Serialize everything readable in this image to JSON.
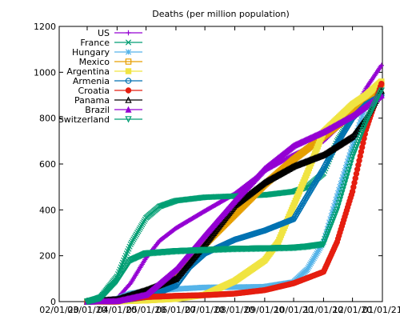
{
  "chart_data": {
    "type": "line",
    "title": "Deaths (per million population)",
    "xlabel": "",
    "ylabel": "",
    "grid": false,
    "legend_position": "top-left",
    "ylim": [
      0,
      1200
    ],
    "yticks": [
      0,
      200,
      400,
      600,
      800,
      1000,
      1200
    ],
    "xticks": [
      "02/01/20",
      "03/01/20",
      "04/01/20",
      "05/01/20",
      "06/01/20",
      "07/01/20",
      "08/01/20",
      "09/01/20",
      "10/01/20",
      "11/01/20",
      "12/01/20",
      "01/01/21"
    ],
    "x_tick_positions": [
      "2020-02-01",
      "2020-03-01",
      "2020-04-01",
      "2020-05-01",
      "2020-06-01",
      "2020-07-01",
      "2020-08-01",
      "2020-09-01",
      "2020-10-01",
      "2020-11-01",
      "2020-12-01",
      "2021-01-01"
    ],
    "xlim": [
      "2020-02-01",
      "2021-01-01"
    ],
    "series": [
      {
        "name": "US",
        "color": "#9400d3",
        "marker": "plus",
        "x": [
          "2020-03-01",
          "2020-04-01",
          "2020-04-15",
          "2020-05-01",
          "2020-05-15",
          "2020-06-01",
          "2020-07-01",
          "2020-08-01",
          "2020-09-01",
          "2020-10-01",
          "2020-11-01",
          "2020-12-01",
          "2020-12-15",
          "2020-12-31"
        ],
        "y": [
          0,
          13,
          80,
          190,
          265,
          320,
          395,
          470,
          570,
          640,
          700,
          820,
          930,
          1030
        ]
      },
      {
        "name": "France",
        "color": "#009e73",
        "marker": "x",
        "x": [
          "2020-03-01",
          "2020-03-15",
          "2020-04-01",
          "2020-04-15",
          "2020-05-01",
          "2020-05-15",
          "2020-06-01",
          "2020-07-01",
          "2020-08-01",
          "2020-09-01",
          "2020-10-01",
          "2020-10-15",
          "2020-11-01",
          "2020-11-15",
          "2020-12-01",
          "2020-12-15",
          "2020-12-31"
        ],
        "y": [
          0,
          20,
          110,
          250,
          365,
          415,
          440,
          455,
          460,
          465,
          480,
          500,
          560,
          700,
          810,
          880,
          950
        ]
      },
      {
        "name": "Hungary",
        "color": "#56b4e9",
        "marker": "star",
        "x": [
          "2020-03-01",
          "2020-04-01",
          "2020-04-15",
          "2020-05-01",
          "2020-06-01",
          "2020-07-01",
          "2020-08-01",
          "2020-09-01",
          "2020-10-01",
          "2020-10-15",
          "2020-11-01",
          "2020-11-15",
          "2020-12-01",
          "2020-12-15",
          "2020-12-31"
        ],
        "y": [
          0,
          10,
          35,
          45,
          55,
          62,
          63,
          65,
          85,
          140,
          260,
          460,
          680,
          860,
          950
        ]
      },
      {
        "name": "Mexico",
        "color": "#e69f00",
        "marker": "square",
        "x": [
          "2020-03-01",
          "2020-04-01",
          "2020-04-15",
          "2020-05-01",
          "2020-05-15",
          "2020-06-01",
          "2020-07-01",
          "2020-08-01",
          "2020-09-01",
          "2020-10-01",
          "2020-11-01",
          "2020-12-01",
          "2020-12-15",
          "2020-12-31"
        ],
        "y": [
          0,
          0,
          8,
          20,
          60,
          120,
          250,
          380,
          510,
          620,
          720,
          820,
          880,
          950
        ]
      },
      {
        "name": "Argentina",
        "color": "#f0e442",
        "marker": "filled-square",
        "x": [
          "2020-03-01",
          "2020-04-01",
          "2020-05-01",
          "2020-06-01",
          "2020-07-01",
          "2020-08-01",
          "2020-09-01",
          "2020-09-15",
          "2020-10-01",
          "2020-10-15",
          "2020-11-01",
          "2020-12-01",
          "2020-12-15",
          "2020-12-31"
        ],
        "y": [
          0,
          1,
          5,
          12,
          30,
          90,
          180,
          260,
          420,
          560,
          740,
          860,
          900,
          960
        ]
      },
      {
        "name": "Armenia",
        "color": "#0072b2",
        "marker": "circle",
        "x": [
          "2020-03-01",
          "2020-04-01",
          "2020-05-01",
          "2020-05-15",
          "2020-06-01",
          "2020-06-15",
          "2020-07-01",
          "2020-08-01",
          "2020-09-01",
          "2020-10-01",
          "2020-10-15",
          "2020-11-01",
          "2020-11-15",
          "2020-12-01",
          "2020-12-15",
          "2020-12-31"
        ],
        "y": [
          0,
          3,
          20,
          40,
          70,
          150,
          210,
          270,
          310,
          360,
          460,
          580,
          690,
          800,
          860,
          900
        ]
      },
      {
        "name": "Croatia",
        "color": "#e51e10",
        "marker": "filled-circle",
        "x": [
          "2020-03-01",
          "2020-04-01",
          "2020-05-01",
          "2020-06-01",
          "2020-07-01",
          "2020-08-01",
          "2020-09-01",
          "2020-10-01",
          "2020-11-01",
          "2020-11-15",
          "2020-12-01",
          "2020-12-15",
          "2020-12-31"
        ],
        "y": [
          0,
          5,
          20,
          25,
          28,
          35,
          50,
          80,
          130,
          260,
          480,
          750,
          950
        ]
      },
      {
        "name": "Panama",
        "color": "#000000",
        "marker": "triangle",
        "x": [
          "2020-03-01",
          "2020-04-01",
          "2020-05-01",
          "2020-06-01",
          "2020-07-01",
          "2020-08-01",
          "2020-09-01",
          "2020-10-01",
          "2020-11-01",
          "2020-12-01",
          "2020-12-15",
          "2020-12-31"
        ],
        "y": [
          0,
          10,
          50,
          100,
          250,
          420,
          520,
          590,
          640,
          720,
          800,
          920
        ]
      },
      {
        "name": "Brazil",
        "color": "#9400d3",
        "marker": "filled-triangle",
        "x": [
          "2020-03-01",
          "2020-04-01",
          "2020-05-01",
          "2020-06-01",
          "2020-07-01",
          "2020-08-01",
          "2020-09-01",
          "2020-10-01",
          "2020-11-01",
          "2020-12-01",
          "2020-12-31"
        ],
        "y": [
          0,
          2,
          30,
          140,
          290,
          440,
          580,
          680,
          740,
          810,
          900
        ]
      },
      {
        "name": "Switzerland",
        "color": "#009e73",
        "marker": "inverted-triangle",
        "x": [
          "2020-03-01",
          "2020-03-15",
          "2020-04-01",
          "2020-04-15",
          "2020-05-01",
          "2020-06-01",
          "2020-07-01",
          "2020-08-01",
          "2020-09-01",
          "2020-10-01",
          "2020-10-15",
          "2020-11-01",
          "2020-11-15",
          "2020-12-01",
          "2020-12-15",
          "2020-12-31"
        ],
        "y": [
          0,
          15,
          90,
          180,
          210,
          220,
          225,
          230,
          232,
          235,
          240,
          250,
          400,
          630,
          780,
          920
        ]
      }
    ]
  }
}
